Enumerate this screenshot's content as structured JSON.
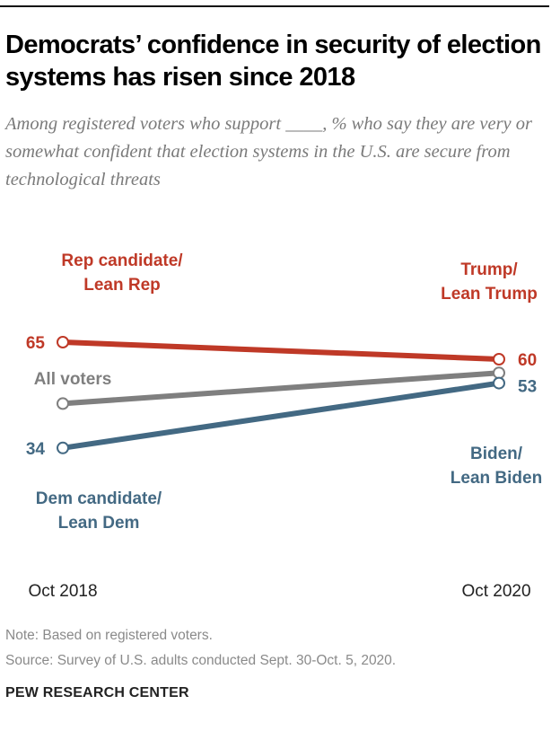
{
  "title": "Democrats’ confidence in security of election systems has risen since 2018",
  "subtitle": "Among registered voters who support ____, % who say they are very or somewhat confident that election systems in the U.S. are secure from technological threats",
  "note": "Note: Based on registered voters.",
  "source": "Source: Survey of U.S. adults conducted Sept. 30-Oct. 5, 2020.",
  "brand": "PEW RESEARCH CENTER",
  "chart_data": {
    "type": "line",
    "title": "Democrats’ confidence in security of election systems has risen since 2018",
    "categories": [
      "Oct 2018",
      "Oct 2020"
    ],
    "ylim": [
      0,
      100
    ],
    "grid": false,
    "series": [
      {
        "key": "rep",
        "name_start": [
          "Rep candidate/",
          "Lean Rep"
        ],
        "name_end": [
          "Trump/",
          "Lean Trump"
        ],
        "values": [
          65,
          60
        ],
        "labels": [
          "65",
          "60"
        ],
        "color": "#bf3927"
      },
      {
        "key": "all",
        "name_start": [
          "All voters"
        ],
        "name_end": [],
        "values": [
          47,
          56
        ],
        "labels": [
          "",
          ""
        ],
        "color": "#7f7f7f"
      },
      {
        "key": "dem",
        "name_start": [
          "Dem candidate/",
          "Lean Dem"
        ],
        "name_end": [
          "Biden/",
          "Lean Biden"
        ],
        "values": [
          34,
          53
        ],
        "labels": [
          "34",
          "53"
        ],
        "color": "#436983"
      }
    ]
  }
}
